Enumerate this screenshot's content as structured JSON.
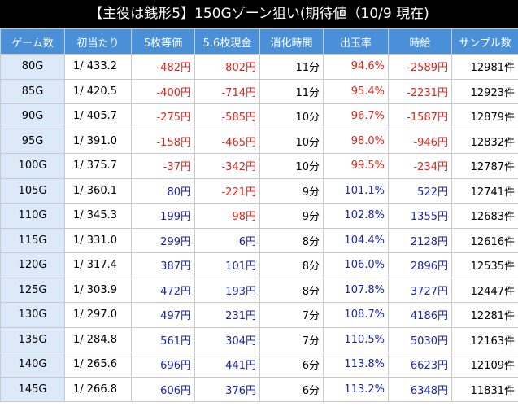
{
  "title": "【主役は銭形5】150Gゾーン狙い(期待値（10/9 現在)",
  "colors": {
    "header_bg": "#4a90d9",
    "negative": "#e0251b",
    "positive": "#1a24a8",
    "first_col_bg": "#dce9f8"
  },
  "headers": [
    "ゲーム数",
    "初当たり",
    "5枚等価",
    "5.6枚現金",
    "消化時間",
    "出玉率",
    "時給",
    "サンプル数"
  ],
  "rows": [
    {
      "game": "80G",
      "prob": "1/ 433.2",
      "eq5": "-482円",
      "cash56": "-802円",
      "time": "11分",
      "rate": "94.6%",
      "hourly": "-2589円",
      "samples": "12981件"
    },
    {
      "game": "85G",
      "prob": "1/ 420.5",
      "eq5": "-400円",
      "cash56": "-714円",
      "time": "11分",
      "rate": "95.4%",
      "hourly": "-2231円",
      "samples": "12923件"
    },
    {
      "game": "90G",
      "prob": "1/ 405.7",
      "eq5": "-275円",
      "cash56": "-585円",
      "time": "10分",
      "rate": "96.7%",
      "hourly": "-1587円",
      "samples": "12879件"
    },
    {
      "game": "95G",
      "prob": "1/ 391.0",
      "eq5": "-158円",
      "cash56": "-465円",
      "time": "10分",
      "rate": "98.0%",
      "hourly": "-946円",
      "samples": "12832件"
    },
    {
      "game": "100G",
      "prob": "1/ 375.7",
      "eq5": "-37円",
      "cash56": "-342円",
      "time": "10分",
      "rate": "99.5%",
      "hourly": "-234円",
      "samples": "12787件"
    },
    {
      "game": "105G",
      "prob": "1/ 360.1",
      "eq5": "80円",
      "cash56": "-221円",
      "time": "9分",
      "rate": "101.1%",
      "hourly": "522円",
      "samples": "12741件"
    },
    {
      "game": "110G",
      "prob": "1/ 345.3",
      "eq5": "199円",
      "cash56": "-98円",
      "time": "9分",
      "rate": "102.8%",
      "hourly": "1355円",
      "samples": "12683件"
    },
    {
      "game": "115G",
      "prob": "1/ 331.0",
      "eq5": "299円",
      "cash56": "6円",
      "time": "8分",
      "rate": "104.4%",
      "hourly": "2128円",
      "samples": "12616件"
    },
    {
      "game": "120G",
      "prob": "1/ 317.4",
      "eq5": "387円",
      "cash56": "101円",
      "time": "8分",
      "rate": "106.0%",
      "hourly": "2896円",
      "samples": "12535件"
    },
    {
      "game": "125G",
      "prob": "1/ 303.9",
      "eq5": "472円",
      "cash56": "193円",
      "time": "8分",
      "rate": "107.8%",
      "hourly": "3727円",
      "samples": "12447件"
    },
    {
      "game": "130G",
      "prob": "1/ 297.0",
      "eq5": "497円",
      "cash56": "231円",
      "time": "7分",
      "rate": "108.7%",
      "hourly": "4186円",
      "samples": "12281件"
    },
    {
      "game": "135G",
      "prob": "1/ 284.8",
      "eq5": "561円",
      "cash56": "304円",
      "time": "7分",
      "rate": "110.5%",
      "hourly": "5030円",
      "samples": "12163件"
    },
    {
      "game": "140G",
      "prob": "1/ 265.6",
      "eq5": "696円",
      "cash56": "441円",
      "time": "6分",
      "rate": "113.8%",
      "hourly": "6623円",
      "samples": "12109件"
    },
    {
      "game": "145G",
      "prob": "1/ 266.8",
      "eq5": "606円",
      "cash56": "376円",
      "time": "6分",
      "rate": "113.2%",
      "hourly": "6348円",
      "samples": "11831件"
    }
  ]
}
